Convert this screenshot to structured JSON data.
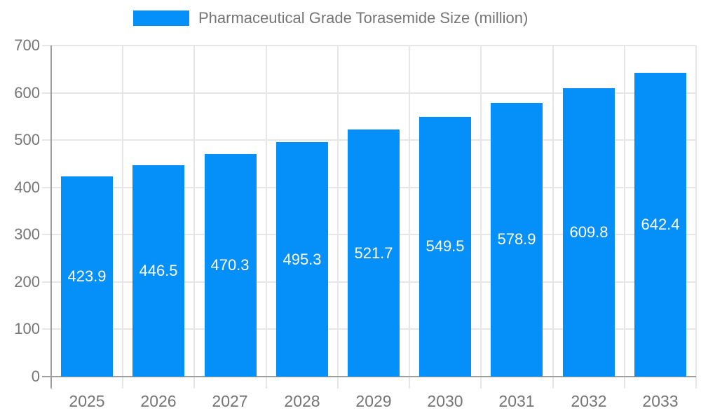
{
  "chart_data": {
    "type": "bar",
    "title": "Pharmaceutical Grade Torasemide Size (million)",
    "legend": [
      "Pharmaceutical Grade Torasemide Size (million)"
    ],
    "legend_position": "top-center",
    "categories": [
      "2025",
      "2026",
      "2027",
      "2028",
      "2029",
      "2030",
      "2031",
      "2032",
      "2033"
    ],
    "values": [
      423.9,
      446.5,
      470.3,
      495.3,
      521.7,
      549.5,
      578.9,
      609.8,
      642.4
    ],
    "xlabel": "",
    "ylabel": "",
    "ylim": [
      0,
      700
    ],
    "ytick_step": 100,
    "yticks": [
      0,
      100,
      200,
      300,
      400,
      500,
      600,
      700
    ],
    "grid": true,
    "value_labels_inside_bars": true,
    "colors": {
      "bar": "#058ff8",
      "grid": "#e6e6e6",
      "axis": "#9e9e9e",
      "tick_text": "#757575",
      "value_label_text": "#ffffff",
      "background": "#ffffff"
    }
  }
}
